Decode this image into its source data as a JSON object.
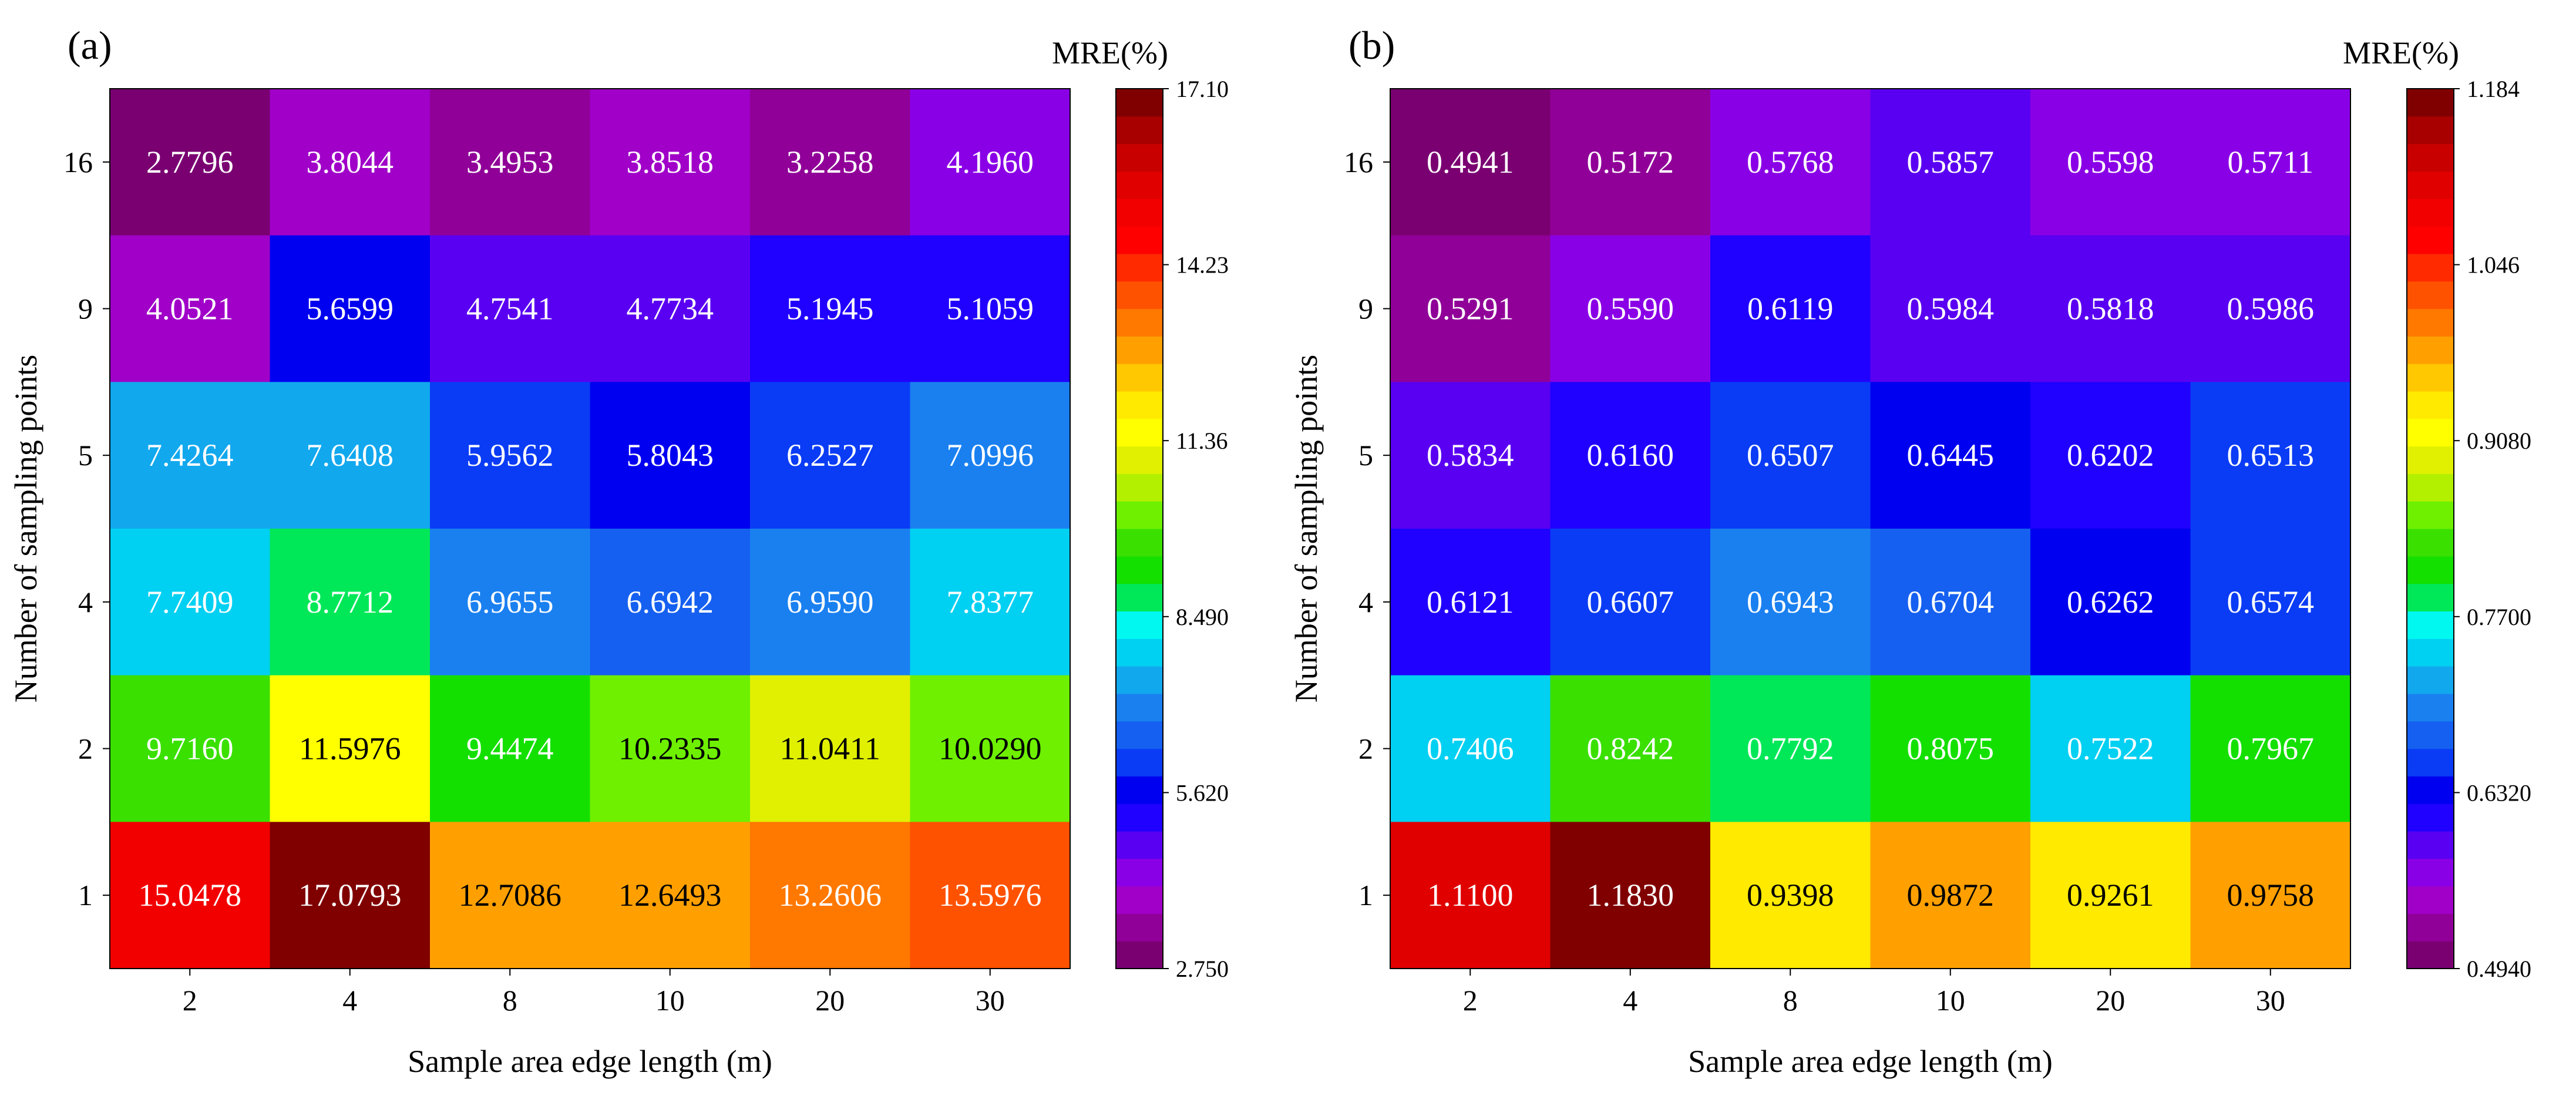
{
  "chart_data": [
    {
      "type": "heatmap",
      "panel_label": "(a)",
      "xlabel": "Sample area edge length (m)",
      "ylabel": "Number of sampling points",
      "x_categories": [
        "2",
        "4",
        "8",
        "10",
        "20",
        "30"
      ],
      "y_categories": [
        "16",
        "9",
        "5",
        "4",
        "2",
        "1"
      ],
      "values": [
        [
          2.7796,
          3.8044,
          3.4953,
          3.8518,
          3.2258,
          4.196
        ],
        [
          4.0521,
          5.6599,
          4.7541,
          4.7734,
          5.1945,
          5.1059
        ],
        [
          7.4264,
          7.6408,
          5.9562,
          5.8043,
          6.2527,
          7.0996
        ],
        [
          7.7409,
          8.7712,
          6.9655,
          6.6942,
          6.959,
          7.8377
        ],
        [
          9.716,
          11.5976,
          9.4474,
          10.2335,
          11.0411,
          10.029
        ],
        [
          15.0478,
          17.0793,
          12.7086,
          12.6493,
          13.2606,
          13.5976
        ]
      ],
      "cell_labels": [
        [
          "2.7796",
          "3.8044",
          "3.4953",
          "3.8518",
          "3.2258",
          "4.1960"
        ],
        [
          "4.0521",
          "5.6599",
          "4.7541",
          "4.7734",
          "5.1945",
          "5.1059"
        ],
        [
          "7.4264",
          "7.6408",
          "5.9562",
          "5.8043",
          "6.2527",
          "7.0996"
        ],
        [
          "7.7409",
          "8.7712",
          "6.9655",
          "6.6942",
          "6.9590",
          "7.8377"
        ],
        [
          "9.7160",
          "11.5976",
          "9.4474",
          "10.2335",
          "11.0411",
          "10.0290"
        ],
        [
          "15.0478",
          "17.0793",
          "12.7086",
          "12.6493",
          "13.2606",
          "13.5976"
        ]
      ],
      "colorbar": {
        "title": "MRE(%)",
        "min": 2.75,
        "max": 17.1,
        "tick_labels": [
          "17.10",
          "14.23",
          "11.36",
          "8.490",
          "5.620",
          "2.750"
        ]
      }
    },
    {
      "type": "heatmap",
      "panel_label": "(b)",
      "xlabel": "Sample area edge length (m)",
      "ylabel": "Number of sampling points",
      "x_categories": [
        "2",
        "4",
        "8",
        "10",
        "20",
        "30"
      ],
      "y_categories": [
        "16",
        "9",
        "5",
        "4",
        "2",
        "1"
      ],
      "values": [
        [
          0.4941,
          0.5172,
          0.5768,
          0.5857,
          0.5598,
          0.5711
        ],
        [
          0.5291,
          0.559,
          0.6119,
          0.5984,
          0.5818,
          0.5986
        ],
        [
          0.5834,
          0.616,
          0.6507,
          0.6445,
          0.6202,
          0.6513
        ],
        [
          0.6121,
          0.6607,
          0.6943,
          0.6704,
          0.6262,
          0.6574
        ],
        [
          0.7406,
          0.8242,
          0.7792,
          0.8075,
          0.7522,
          0.7967
        ],
        [
          1.11,
          1.183,
          0.9398,
          0.9872,
          0.9261,
          0.9758
        ]
      ],
      "cell_labels": [
        [
          "0.4941",
          "0.5172",
          "0.5768",
          "0.5857",
          "0.5598",
          "0.5711"
        ],
        [
          "0.5291",
          "0.5590",
          "0.6119",
          "0.5984",
          "0.5818",
          "0.5986"
        ],
        [
          "0.5834",
          "0.6160",
          "0.6507",
          "0.6445",
          "0.6202",
          "0.6513"
        ],
        [
          "0.6121",
          "0.6607",
          "0.6943",
          "0.6704",
          "0.6262",
          "0.6574"
        ],
        [
          "0.7406",
          "0.8242",
          "0.7792",
          "0.8075",
          "0.7522",
          "0.7967"
        ],
        [
          "1.1100",
          "1.1830",
          "0.9398",
          "0.9872",
          "0.9261",
          "0.9758"
        ]
      ],
      "colorbar": {
        "title": "MRE(%)",
        "min": 0.494,
        "max": 1.184,
        "tick_labels": [
          "1.184",
          "1.046",
          "0.9080",
          "0.7700",
          "0.6320",
          "0.4940"
        ]
      }
    }
  ],
  "colormap": [
    "#7a0072",
    "#900098",
    "#a000c8",
    "#8a00e6",
    "#5a00f2",
    "#2000ff",
    "#0000f0",
    "#0a3cf5",
    "#1560f0",
    "#1a80f0",
    "#12a8ee",
    "#00d0f2",
    "#00f8f0",
    "#00e858",
    "#14e000",
    "#3ae000",
    "#6ef000",
    "#b2f000",
    "#e0f000",
    "#ffff00",
    "#ffea00",
    "#ffc800",
    "#ffa000",
    "#ff7800",
    "#ff5200",
    "#ff2a00",
    "#ff0000",
    "#f20000",
    "#e00000",
    "#c80000",
    "#a80000",
    "#800000"
  ]
}
